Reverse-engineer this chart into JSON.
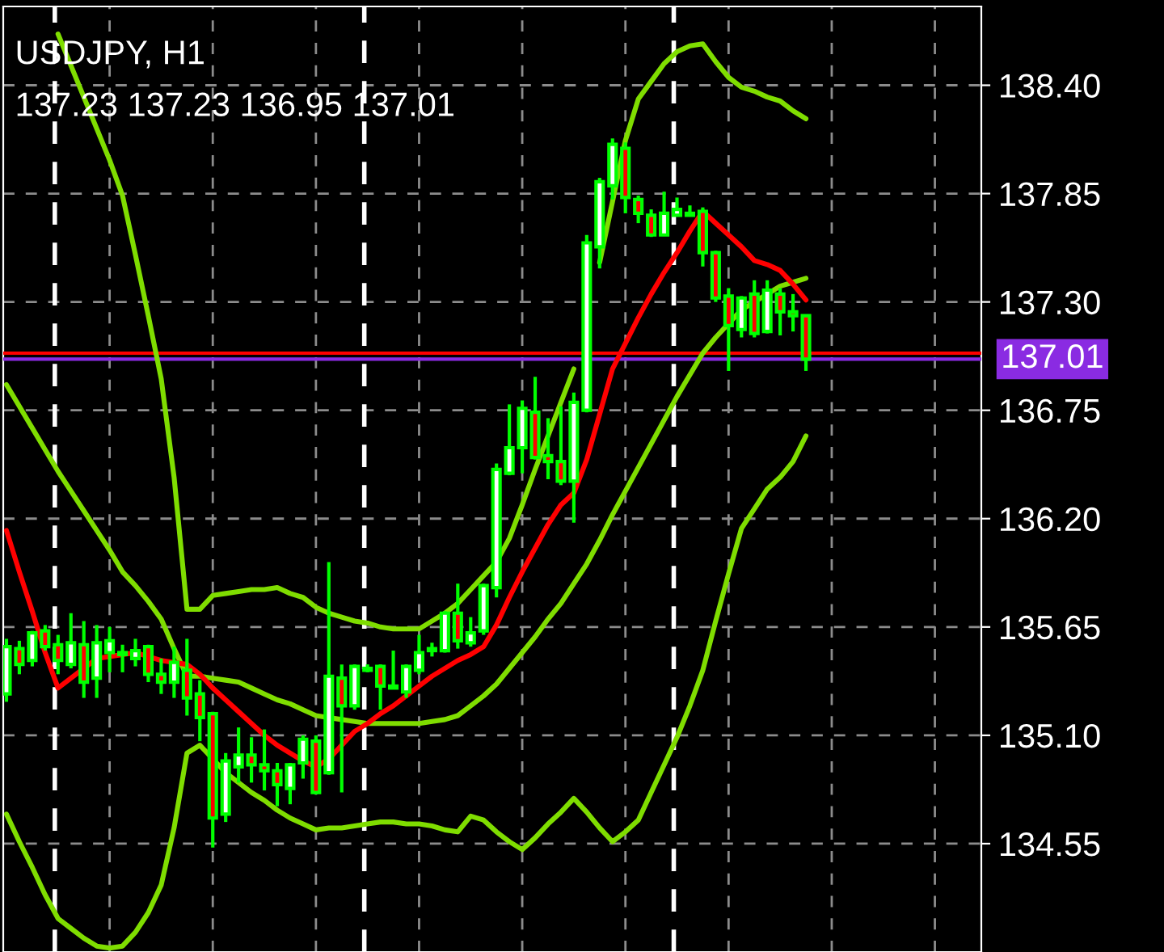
{
  "chart_data": {
    "type": "candlestick",
    "title": "USDJPY, H1",
    "subtitle": "137.23 137.23 136.95 137.01",
    "categories": [
      null,
      null,
      null,
      null,
      null,
      null,
      null,
      null,
      null,
      null,
      null,
      null,
      null,
      null,
      null,
      null,
      null,
      null,
      null,
      null,
      null,
      null,
      null,
      null,
      null,
      null,
      null,
      null,
      null,
      null,
      null,
      null,
      null,
      null,
      null,
      null,
      null,
      null,
      null,
      null,
      null,
      null,
      null,
      null,
      null,
      null,
      null,
      null,
      null,
      null,
      null,
      null,
      null,
      null,
      null,
      null,
      null,
      null,
      null,
      null,
      null,
      null,
      null
    ],
    "series": [
      {
        "type": "line",
        "color": "#7fdd00",
        "values": [
          null,
          null,
          null,
          null,
          138.66,
          138.5,
          138.34,
          138.18,
          138.02,
          137.84,
          137.54,
          137.23,
          136.91,
          136.41,
          135.74,
          135.74,
          135.81,
          135.82,
          135.83,
          135.84,
          135.84,
          135.85,
          135.82,
          135.8,
          135.75,
          135.72,
          135.7,
          135.68,
          135.67,
          135.65,
          135.64,
          135.64,
          135.64,
          135.68,
          135.72,
          135.77,
          135.84,
          135.91,
          135.98,
          136.1,
          136.27,
          136.45,
          136.62,
          136.79,
          136.96,
          null,
          137.5,
          137.81,
          138.12,
          138.33,
          138.42,
          138.51,
          138.57,
          138.6,
          138.61,
          138.52,
          138.44,
          138.39,
          138.37,
          138.34,
          138.32,
          138.27,
          138.23
        ]
      },
      {
        "type": "line",
        "color": "#7fdd00",
        "values": [
          136.88,
          136.77,
          136.66,
          136.55,
          136.44,
          136.34,
          136.24,
          136.14,
          136.04,
          135.93,
          135.86,
          135.78,
          135.69,
          135.54,
          135.4,
          135.4,
          135.39,
          135.38,
          135.37,
          135.34,
          135.31,
          135.28,
          135.26,
          135.23,
          135.2,
          135.19,
          135.18,
          135.17,
          135.16,
          135.16,
          135.16,
          135.16,
          135.16,
          135.17,
          135.18,
          135.2,
          135.25,
          135.3,
          135.36,
          135.44,
          135.52,
          135.6,
          135.69,
          135.77,
          135.87,
          135.97,
          136.09,
          136.22,
          136.34,
          136.46,
          136.58,
          136.7,
          136.82,
          136.93,
          137.04,
          137.12,
          137.19,
          137.26,
          137.3,
          137.34,
          137.38,
          137.4,
          137.42
        ]
      },
      {
        "type": "line",
        "color": "#7fdd00",
        "values": [
          134.7,
          134.56,
          134.43,
          134.29,
          134.17,
          134.12,
          134.07,
          134.03,
          134.02,
          134.03,
          134.1,
          134.2,
          134.34,
          134.63,
          135.01,
          135.05,
          134.98,
          134.91,
          134.86,
          134.81,
          134.77,
          134.72,
          134.68,
          134.65,
          134.62,
          134.63,
          134.63,
          134.64,
          134.65,
          134.66,
          134.66,
          134.65,
          134.65,
          134.64,
          134.62,
          134.61,
          134.69,
          134.67,
          134.61,
          134.56,
          134.52,
          134.58,
          134.65,
          134.71,
          134.78,
          134.71,
          134.63,
          134.56,
          134.61,
          134.67,
          134.81,
          134.95,
          135.09,
          135.25,
          135.43,
          135.68,
          135.92,
          136.15,
          136.25,
          136.35,
          136.41,
          136.49,
          136.62
        ]
      },
      {
        "type": "line",
        "color": "#ff0000",
        "values": [
          136.14,
          135.93,
          135.73,
          135.52,
          135.34,
          135.39,
          135.44,
          135.49,
          135.5,
          135.51,
          135.52,
          135.5,
          135.48,
          135.47,
          135.46,
          135.41,
          135.34,
          135.28,
          135.22,
          135.16,
          135.1,
          135.05,
          135.01,
          134.97,
          134.94,
          134.98,
          135.05,
          135.12,
          135.16,
          135.21,
          135.25,
          135.3,
          135.35,
          135.4,
          135.44,
          135.48,
          135.51,
          135.55,
          135.66,
          135.8,
          135.93,
          136.05,
          136.17,
          136.27,
          136.33,
          136.5,
          136.73,
          136.96,
          137.09,
          137.22,
          137.34,
          137.45,
          137.55,
          137.66,
          137.76,
          137.7,
          137.64,
          137.58,
          137.51,
          137.49,
          137.46,
          137.39,
          137.31
        ]
      },
      {
        "color": "#00ff00",
        "colors": [
          "#ffffff",
          "#ff0000",
          "#ffffff",
          "#ff0000",
          "#ff0000",
          "#ffffff",
          "#ff0000",
          "#ffffff",
          "#ffffff",
          "#ffffff",
          "#ffffff",
          "#ff0000",
          "#ff0000",
          "#ffffff",
          "#ff0000",
          "#ff0000",
          "#ff0000",
          "#ffffff",
          "#ffffff",
          "#ff0000",
          "#ff0000",
          "#ff0000",
          "#ffffff",
          "#ffffff",
          "#ff0000",
          "#ffffff",
          "#ff0000",
          "#ffffff",
          "#ffffff",
          "#ff0000",
          "#ffffff",
          "#ffffff",
          "#ffffff",
          "#ffffff",
          "#ffffff",
          "#ff0000",
          "#ffffff",
          "#ffffff",
          "#ffffff",
          "#ffffff",
          "#ffffff",
          "#ff0000",
          "#ff0000",
          "#ff0000",
          "#ffffff",
          "#ffffff",
          "#ffffff",
          "#ffffff",
          "#ff0000",
          "#ff0000",
          "#ff0000",
          "#ffffff",
          "#ffffff",
          "#ffffff",
          "#ff0000",
          "#ff0000",
          "#ff0000",
          "#ffffff",
          "#ff0000",
          "#ffffff",
          "#ff0000",
          "#ff0000",
          "#ff0000"
        ],
        "ohlc": [
          [
            135.31,
            135.59,
            135.27,
            135.55
          ],
          [
            135.54,
            135.58,
            135.41,
            135.46
          ],
          [
            135.48,
            135.63,
            135.45,
            135.62
          ],
          [
            135.63,
            135.66,
            135.53,
            135.55
          ],
          [
            135.56,
            135.61,
            135.41,
            135.48
          ],
          [
            135.46,
            135.72,
            135.44,
            135.57
          ],
          [
            135.56,
            135.68,
            135.29,
            135.37
          ],
          [
            135.39,
            135.66,
            135.29,
            135.57
          ],
          [
            135.52,
            135.65,
            135.42,
            135.58
          ],
          [
            135.51,
            135.56,
            135.42,
            135.52
          ],
          [
            135.49,
            135.59,
            135.45,
            135.53
          ],
          [
            135.55,
            135.56,
            135.37,
            135.41
          ],
          [
            135.41,
            135.49,
            135.31,
            135.37
          ],
          [
            135.37,
            135.55,
            135.29,
            135.47
          ],
          [
            135.43,
            135.59,
            135.2,
            135.29
          ],
          [
            135.31,
            135.38,
            135.07,
            135.19
          ],
          [
            135.21,
            135.22,
            134.53,
            134.68
          ],
          [
            134.7,
            135.01,
            134.66,
            134.97
          ],
          [
            134.94,
            135.14,
            134.86,
            135.0
          ],
          [
            135.0,
            135.09,
            134.86,
            134.95
          ],
          [
            134.95,
            135.13,
            134.82,
            134.92
          ],
          [
            134.92,
            134.96,
            134.74,
            134.85
          ],
          [
            134.83,
            134.96,
            134.75,
            134.95
          ],
          [
            134.96,
            135.1,
            134.88,
            135.08
          ],
          [
            135.07,
            135.1,
            134.8,
            134.81
          ],
          [
            134.91,
            135.98,
            134.9,
            135.4
          ],
          [
            135.39,
            135.46,
            134.81,
            135.25
          ],
          [
            135.25,
            135.46,
            135.23,
            135.45
          ],
          [
            135.43,
            135.46,
            135.42,
            135.44
          ],
          [
            135.45,
            135.46,
            135.23,
            135.35
          ],
          [
            135.34,
            135.53,
            135.34,
            135.35
          ],
          [
            135.32,
            135.46,
            135.29,
            135.45
          ],
          [
            135.43,
            135.61,
            135.41,
            135.52
          ],
          [
            135.53,
            135.57,
            135.5,
            135.54
          ],
          [
            135.53,
            135.73,
            135.52,
            135.72
          ],
          [
            135.72,
            135.87,
            135.54,
            135.58
          ],
          [
            135.57,
            135.7,
            135.55,
            135.62
          ],
          [
            135.63,
            135.87,
            135.61,
            135.86
          ],
          [
            135.85,
            136.48,
            135.8,
            136.45
          ],
          [
            136.43,
            136.78,
            136.42,
            136.56
          ],
          [
            136.56,
            136.8,
            136.43,
            136.76
          ],
          [
            136.74,
            136.92,
            136.5,
            136.51
          ],
          [
            136.52,
            136.71,
            136.4,
            136.49
          ],
          [
            136.49,
            136.77,
            136.37,
            136.39
          ],
          [
            136.39,
            136.84,
            136.18,
            136.79
          ],
          [
            136.75,
            137.64,
            136.74,
            137.6
          ],
          [
            137.58,
            137.93,
            137.47,
            137.91
          ],
          [
            137.89,
            138.13,
            137.82,
            138.1
          ],
          [
            138.08,
            138.11,
            137.75,
            137.83
          ],
          [
            137.82,
            137.84,
            137.7,
            137.75
          ],
          [
            137.74,
            137.77,
            137.63,
            137.64
          ],
          [
            137.64,
            137.86,
            137.64,
            137.75
          ],
          [
            137.74,
            137.83,
            137.74,
            137.77
          ],
          [
            137.74,
            137.79,
            137.74,
            137.75
          ],
          [
            137.76,
            137.78,
            137.48,
            137.55
          ],
          [
            137.55,
            137.56,
            137.3,
            137.32
          ],
          [
            137.33,
            137.37,
            136.95,
            137.18
          ],
          [
            137.16,
            137.33,
            137.12,
            137.32
          ],
          [
            137.34,
            137.41,
            137.12,
            137.14
          ],
          [
            137.15,
            137.41,
            137.14,
            137.36
          ],
          [
            137.34,
            137.37,
            137.13,
            137.25
          ],
          [
            137.25,
            137.34,
            137.15,
            137.23
          ],
          [
            137.23,
            137.23,
            136.95,
            137.01
          ]
        ]
      }
    ],
    "ylim": [
      134.0,
      138.8
    ],
    "yticks": [
      {
        "value": 134.55,
        "label": "134.55"
      },
      {
        "value": 135.1,
        "label": "135.10"
      },
      {
        "value": 135.65,
        "label": "135.65"
      },
      {
        "value": 136.2,
        "label": "136.20"
      },
      {
        "value": 136.75,
        "label": "136.75"
      },
      {
        "value": 137.3,
        "label": "137.30"
      },
      {
        "value": 137.85,
        "label": "137.85"
      },
      {
        "value": 138.4,
        "label": "138.40"
      }
    ],
    "tick_labels": "y",
    "grid": true,
    "ref_lines": [
      {
        "axis": "y",
        "value": 137.04,
        "color": "#ff0000",
        "line_style": "solid"
      },
      {
        "axis": "y",
        "value": 137.01,
        "label": "137.01",
        "color": "#8a2be2",
        "line_style": "solid"
      }
    ]
  }
}
